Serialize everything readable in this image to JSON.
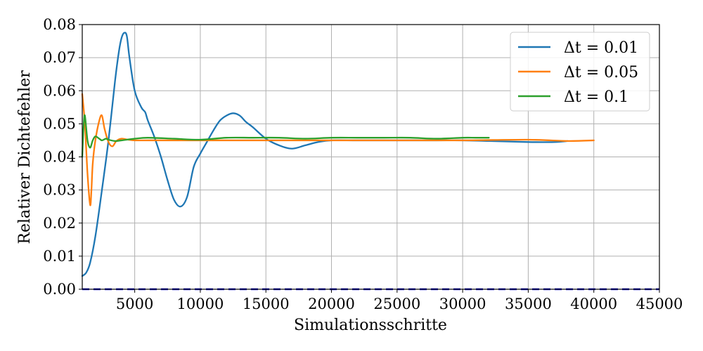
{
  "chart_data": {
    "type": "line",
    "xlabel": "Simulationsschritte",
    "ylabel": "Relativer Dichtefehler",
    "xlim": [
      1000,
      45000
    ],
    "ylim": [
      0.0,
      0.08
    ],
    "xticks": [
      5000,
      10000,
      15000,
      20000,
      25000,
      30000,
      35000,
      40000,
      45000
    ],
    "yticks": [
      0.0,
      0.01,
      0.02,
      0.03,
      0.04,
      0.05,
      0.06,
      0.07,
      0.08
    ],
    "xtick_labels": [
      "5000",
      "10000",
      "15000",
      "20000",
      "25000",
      "30000",
      "35000",
      "40000",
      "45000"
    ],
    "ytick_labels": [
      "0.00",
      "0.01",
      "0.02",
      "0.03",
      "0.04",
      "0.05",
      "0.06",
      "0.07",
      "0.08"
    ],
    "grid": true,
    "legend_position": "top-right",
    "reference_line": {
      "y": 0.0,
      "style": "dashed",
      "color": "#0000cc"
    },
    "series": [
      {
        "name": "Δt = 0.01",
        "color": "#1f77b4",
        "x": [
          1000,
          1300,
          1600,
          2000,
          2500,
          3000,
          3500,
          3800,
          4000,
          4200,
          4400,
          4600,
          5000,
          5500,
          5800,
          6000,
          6500,
          7000,
          7500,
          8000,
          8500,
          9000,
          9500,
          10000,
          10500,
          11000,
          11500,
          12000,
          12500,
          13000,
          13500,
          14000,
          15000,
          16000,
          17000,
          18000,
          19000,
          20000,
          22000,
          25000,
          28000,
          30000,
          32000,
          35000,
          37000,
          38000
        ],
        "y": [
          0.004,
          0.005,
          0.008,
          0.016,
          0.03,
          0.045,
          0.063,
          0.072,
          0.076,
          0.0775,
          0.0765,
          0.07,
          0.06,
          0.055,
          0.0535,
          0.051,
          0.046,
          0.04,
          0.033,
          0.027,
          0.025,
          0.028,
          0.037,
          0.041,
          0.0445,
          0.048,
          0.051,
          0.0525,
          0.0532,
          0.0525,
          0.0505,
          0.049,
          0.0455,
          0.0435,
          0.0425,
          0.0435,
          0.0445,
          0.045,
          0.045,
          0.045,
          0.045,
          0.045,
          0.0448,
          0.0445,
          0.0445,
          0.0448
        ]
      },
      {
        "name": "Δt = 0.05",
        "color": "#ff7f0e",
        "x": [
          1000,
          1200,
          1400,
          1600,
          1700,
          1800,
          2000,
          2300,
          2500,
          2700,
          3000,
          3300,
          3600,
          4000,
          4500,
          5000,
          6000,
          8000,
          10000,
          15000,
          20000,
          25000,
          30000,
          35000,
          38000,
          40000
        ],
        "y": [
          0.059,
          0.05,
          0.035,
          0.0255,
          0.03,
          0.038,
          0.045,
          0.051,
          0.0525,
          0.0485,
          0.0445,
          0.0432,
          0.0448,
          0.0455,
          0.0452,
          0.045,
          0.045,
          0.045,
          0.045,
          0.045,
          0.045,
          0.045,
          0.045,
          0.0452,
          0.0448,
          0.045
        ]
      },
      {
        "name": "Δt = 0.1",
        "color": "#2ca02c",
        "x": [
          1000,
          1100,
          1200,
          1400,
          1600,
          1800,
          2000,
          2300,
          2500,
          2800,
          3000,
          3500,
          4000,
          5000,
          6000,
          8000,
          10000,
          12000,
          14000,
          16000,
          18000,
          20000,
          22000,
          24000,
          26000,
          28000,
          30000,
          31000,
          32000
        ],
        "y": [
          0.04,
          0.049,
          0.0525,
          0.045,
          0.0428,
          0.045,
          0.0462,
          0.0455,
          0.045,
          0.0455,
          0.0452,
          0.0448,
          0.045,
          0.0455,
          0.0458,
          0.0455,
          0.0452,
          0.0458,
          0.0458,
          0.0458,
          0.0455,
          0.0458,
          0.0458,
          0.0458,
          0.0458,
          0.0455,
          0.0458,
          0.0458,
          0.0458
        ]
      }
    ]
  }
}
